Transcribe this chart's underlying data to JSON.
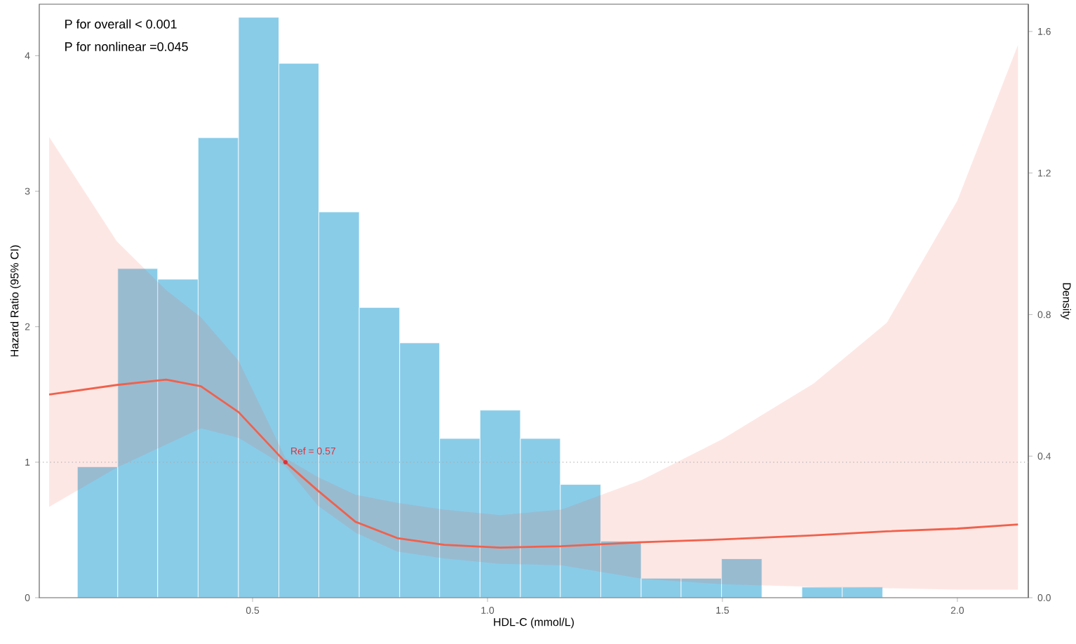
{
  "chart_data": {
    "type": "line",
    "xlabel": "HDL-C (mmol/L)",
    "ylabel": "Hazard Ratio (95% CI)",
    "y2label": "Density",
    "xlim": [
      0.046,
      2.151
    ],
    "xticks": [
      0.5,
      {
        "value": 1.0,
        "label": "1.0"
      },
      1.5,
      {
        "value": 2.0,
        "label": "2.0"
      }
    ],
    "ylim": [
      0,
      4.38
    ],
    "yticks": [
      0,
      1,
      2,
      3,
      4
    ],
    "y2lim": [
      0,
      1.677
    ],
    "y2ticks": [
      {
        "value": 0,
        "label": "0.0"
      },
      0.4,
      0.8,
      1.2,
      1.6
    ],
    "series": [
      {
        "type": "histogram",
        "axis": "y2",
        "color": "#89cce8",
        "bins": [
          0.127,
          0.213,
          0.298,
          0.384,
          0.47,
          0.556,
          0.641,
          0.727,
          0.813,
          0.898,
          0.984,
          1.07,
          1.155,
          1.241,
          1.327,
          1.412,
          1.498,
          1.584,
          1.669,
          1.755,
          1.841
        ],
        "values": [
          0.37,
          0.93,
          0.9,
          1.3,
          1.64,
          1.51,
          1.09,
          0.82,
          0.72,
          0.45,
          0.53,
          0.45,
          0.32,
          0.16,
          0.055,
          0.055,
          0.11,
          0,
          0.03,
          0.03
        ]
      },
      {
        "color": "#f0614c",
        "x": [
          0.067,
          0.211,
          0.316,
          0.39,
          0.47,
          0.57,
          0.639,
          0.719,
          0.808,
          0.908,
          1.027,
          1.157,
          1.329,
          1.5,
          1.694,
          1.85,
          2.0,
          2.129
        ],
        "values": [
          1.5,
          1.57,
          1.61,
          1.56,
          1.37,
          1.0,
          0.79,
          0.56,
          0.44,
          0.39,
          0.37,
          0.38,
          0.41,
          0.43,
          0.46,
          0.49,
          0.51,
          0.54
        ],
        "lower": [
          0.67,
          0.96,
          1.13,
          1.25,
          1.18,
          0.97,
          0.68,
          0.48,
          0.34,
          0.29,
          0.25,
          0.24,
          0.14,
          0.1,
          0.08,
          0.07,
          0.06,
          0.06
        ],
        "upper": [
          3.4,
          2.63,
          2.27,
          2.07,
          1.75,
          1.03,
          0.89,
          0.76,
          0.7,
          0.65,
          0.61,
          0.65,
          0.87,
          1.17,
          1.58,
          2.03,
          2.93,
          4.08
        ]
      }
    ],
    "ref_lines": [
      {
        "axis": "y",
        "value": 1,
        "color": "#aaaaaa",
        "line_style": "dotted"
      }
    ],
    "annotations": [
      "P for overall < 0.001",
      "P for nonlinear =0.045",
      {
        "text": "Ref = 0.57",
        "x": 0.57,
        "y": 1
      }
    ]
  }
}
